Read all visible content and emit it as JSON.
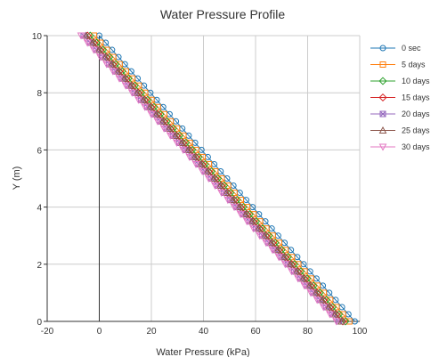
{
  "chart_data": {
    "type": "line",
    "title": "Water Pressure Profile",
    "xlabel": "Water Pressure (kPa)",
    "ylabel": "Y (m)",
    "xlim": [
      -20,
      100
    ],
    "ylim": [
      0,
      10
    ],
    "x_ticks": [
      "-20",
      "0",
      "20",
      "40",
      "60",
      "80",
      "100"
    ],
    "y_ticks": [
      "0",
      "2",
      "4",
      "6",
      "8",
      "10"
    ],
    "grid": true,
    "zero_line_x": 0,
    "legend_position": "right",
    "y_step": 0.25,
    "series": [
      {
        "name": "0 sec",
        "color": "#1f77b4",
        "marker": "circle",
        "x_at_y0": 98.1,
        "x_at_y10": 0.0
      },
      {
        "name": "5 days",
        "color": "#ff7f0e",
        "marker": "square",
        "x_at_y0": 96.0,
        "x_at_y10": -2.0
      },
      {
        "name": "10 days",
        "color": "#2ca02c",
        "marker": "diamond",
        "x_at_y0": 94.5,
        "x_at_y10": -3.5
      },
      {
        "name": "15 days",
        "color": "#d62728",
        "marker": "diamond",
        "x_at_y0": 93.5,
        "x_at_y10": -4.5
      },
      {
        "name": "20 days",
        "color": "#9467bd",
        "marker": "x-square",
        "x_at_y0": 92.0,
        "x_at_y10": -6.0
      },
      {
        "name": "25 days",
        "color": "#8c564b",
        "marker": "triangle",
        "x_at_y0": 93.0,
        "x_at_y10": -5.0
      },
      {
        "name": "30 days",
        "color": "#e377c2",
        "marker": "triangle-down",
        "x_at_y0": 91.0,
        "x_at_y10": -7.0
      }
    ]
  }
}
